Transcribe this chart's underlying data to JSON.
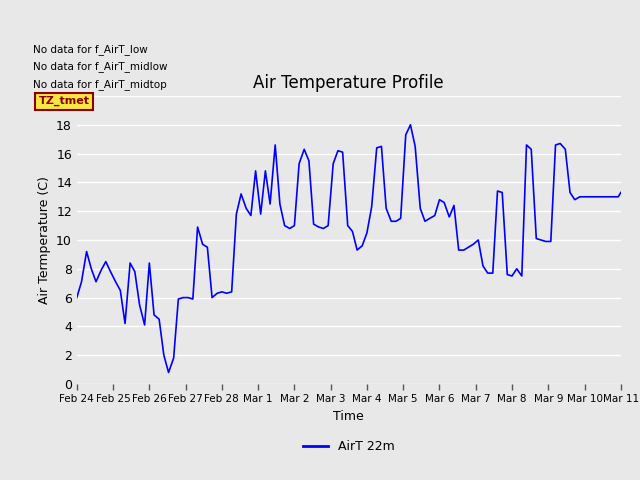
{
  "title": "Air Temperature Profile",
  "xlabel": "Time",
  "ylabel": "Air Termperature (C)",
  "legend_label": "AirT 22m",
  "ylim": [
    0,
    20
  ],
  "xlim": [
    0,
    15
  ],
  "plot_bg_color": "#e8e8e8",
  "line_color": "blue",
  "annotations": [
    "No data for f_AirT_low",
    "No data for f_AirT_midlow",
    "No data for f_AirT_midtop"
  ],
  "tz_label": "TZ_tmet",
  "x_tick_labels": [
    "Feb 24",
    "Feb 25",
    "Feb 26",
    "Feb 27",
    "Feb 28",
    "Mar 1",
    "Mar 2",
    "Mar 3",
    "Mar 4",
    "Mar 5",
    "Mar 6",
    "Mar 7",
    "Mar 8",
    "Mar 9",
    "Mar 10",
    "Mar 11"
  ],
  "x_tick_positions": [
    0,
    1,
    2,
    3,
    4,
    5,
    6,
    7,
    8,
    9,
    10,
    11,
    12,
    13,
    14,
    15
  ],
  "x_values": [
    0.0,
    0.13,
    0.27,
    0.4,
    0.53,
    0.67,
    0.8,
    0.93,
    1.07,
    1.2,
    1.33,
    1.47,
    1.6,
    1.73,
    1.87,
    2.0,
    2.13,
    2.27,
    2.4,
    2.53,
    2.67,
    2.8,
    2.93,
    3.07,
    3.2,
    3.33,
    3.47,
    3.6,
    3.73,
    3.87,
    4.0,
    4.13,
    4.27,
    4.4,
    4.53,
    4.67,
    4.8,
    4.93,
    5.07,
    5.2,
    5.33,
    5.47,
    5.6,
    5.73,
    5.87,
    6.0,
    6.13,
    6.27,
    6.4,
    6.53,
    6.67,
    6.8,
    6.93,
    7.07,
    7.2,
    7.33,
    7.47,
    7.6,
    7.73,
    7.87,
    8.0,
    8.13,
    8.27,
    8.4,
    8.53,
    8.67,
    8.8,
    8.93,
    9.07,
    9.2,
    9.33,
    9.47,
    9.6,
    9.73,
    9.87,
    10.0,
    10.13,
    10.27,
    10.4,
    10.53,
    10.67,
    10.8,
    10.93,
    11.07,
    11.2,
    11.33,
    11.47,
    11.6,
    11.73,
    11.87,
    12.0,
    12.13,
    12.27,
    12.4,
    12.53,
    12.67,
    12.8,
    12.93,
    13.07,
    13.2,
    13.33,
    13.47,
    13.6,
    13.73,
    13.87,
    14.0,
    14.13,
    14.27,
    14.4,
    14.53,
    14.67,
    14.8,
    14.93,
    15.0
  ],
  "y_values": [
    6.0,
    7.1,
    9.2,
    8.0,
    7.1,
    7.9,
    8.5,
    7.8,
    7.1,
    6.5,
    4.2,
    8.4,
    7.8,
    5.5,
    4.1,
    8.4,
    4.8,
    4.5,
    2.0,
    0.8,
    1.8,
    5.9,
    6.0,
    6.0,
    5.9,
    10.9,
    9.7,
    9.5,
    6.0,
    6.3,
    6.4,
    6.3,
    6.4,
    11.8,
    13.2,
    12.2,
    11.7,
    14.8,
    11.8,
    14.8,
    12.5,
    16.6,
    12.5,
    11.0,
    10.8,
    11.0,
    15.3,
    16.3,
    15.5,
    11.1,
    10.9,
    10.8,
    11.0,
    15.3,
    16.2,
    16.1,
    11.0,
    10.6,
    9.3,
    9.6,
    10.5,
    12.3,
    16.4,
    16.5,
    12.2,
    11.3,
    11.3,
    11.5,
    17.3,
    18.0,
    16.5,
    12.2,
    11.3,
    11.5,
    11.7,
    12.8,
    12.6,
    11.6,
    12.4,
    9.3,
    9.3,
    9.5,
    9.7,
    10.0,
    8.2,
    7.7,
    7.7,
    13.4,
    13.3,
    7.6,
    7.5,
    8.0,
    7.5,
    16.6,
    16.3,
    10.1,
    10.0,
    9.9,
    9.9,
    16.6,
    16.7,
    16.3,
    13.3,
    12.8,
    13.0,
    13.0,
    13.0,
    13.0,
    13.0,
    13.0,
    13.0,
    13.0,
    13.0,
    13.3
  ]
}
